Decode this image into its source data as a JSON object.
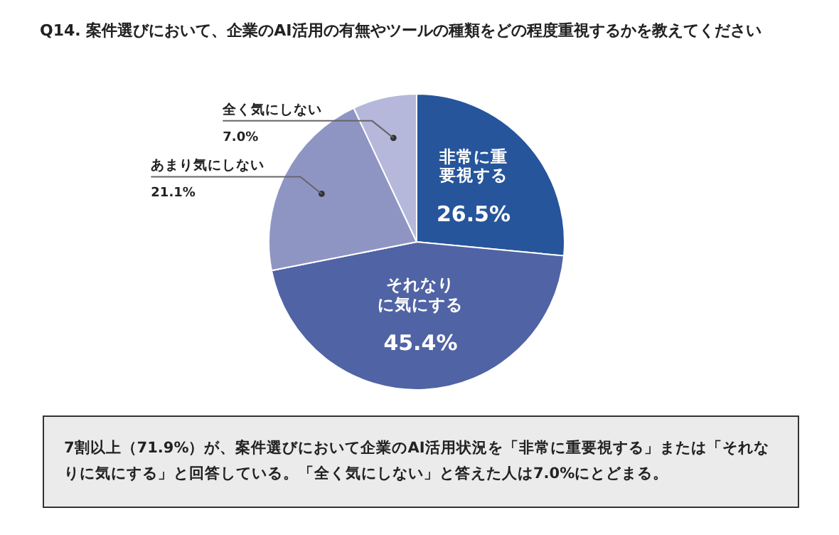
{
  "chart_data": {
    "type": "pie",
    "title": "Q14. 案件選びにおいて、企業のAI活用の有無やツールの種類をどの程度重視するかを教えてください",
    "categories": [
      "非常に重要視する",
      "それなりに気にする",
      "あまり気にしない",
      "全く気にしない"
    ],
    "values": [
      26.5,
      45.4,
      21.1,
      7.0
    ],
    "colors": [
      "#26559b",
      "#5063a4",
      "#8f95c3",
      "#b5b8da"
    ],
    "value_labels": [
      "26.5%",
      "45.4%",
      "21.1%",
      "7.0%"
    ],
    "annotations": [
      "7割以上（71.9%）が、案件選びにおいて企業のAI活用状況を「非常に重要視する」または「それなりに気にする」と回答している。「全く気にしない」と答えた人は7.0%にとどまる。"
    ]
  }
}
